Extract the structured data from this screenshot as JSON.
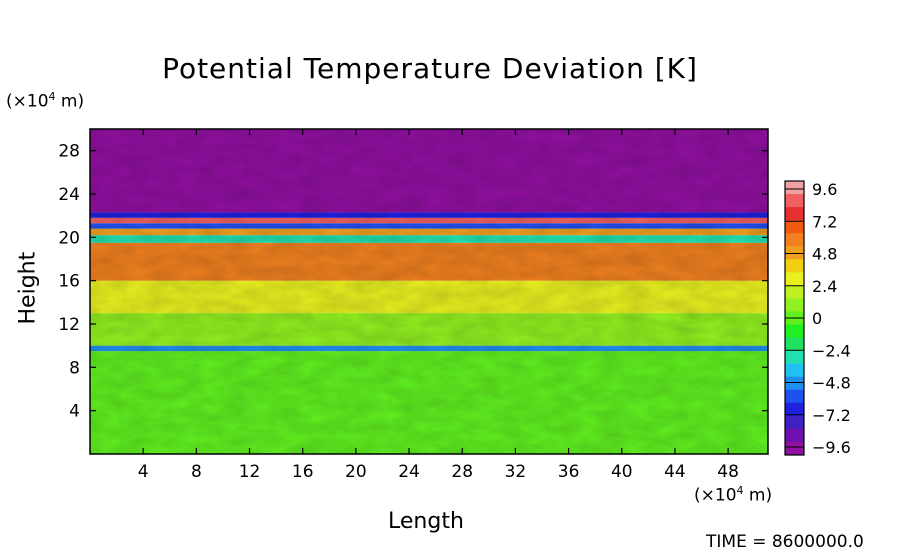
{
  "chart_data": {
    "type": "heatmap",
    "title": "Potential Temperature Deviation [K]",
    "xlabel": "Length",
    "ylabel": "Height",
    "x_unit_prefix": "(×10",
    "x_unit_exp": "4",
    "x_unit_suffix": " m)",
    "y_unit_prefix": "(×10",
    "y_unit_exp": "4",
    "y_unit_suffix": " m)",
    "xlim": [
      0,
      51
    ],
    "ylim": [
      0,
      30
    ],
    "x_ticks": [
      4,
      8,
      12,
      16,
      20,
      24,
      28,
      32,
      36,
      40,
      44,
      48
    ],
    "y_ticks": [
      4,
      8,
      12,
      16,
      20,
      24,
      28
    ],
    "colorbar": {
      "range": [
        -9.6,
        9.6
      ],
      "tick_labels": [
        "9.6",
        "7.2",
        "4.8",
        "2.4",
        "0",
        "−2.4",
        "−4.8",
        "−7.2",
        "−9.6"
      ],
      "tick_values": [
        9.6,
        7.2,
        4.8,
        2.4,
        0,
        -2.4,
        -4.8,
        -7.2,
        -9.6
      ],
      "colors": [
        "#f0a0a0",
        "#f06060",
        "#e83030",
        "#f05a10",
        "#f08020",
        "#f0a020",
        "#f0d010",
        "#e8f020",
        "#c0f020",
        "#90f020",
        "#60f020",
        "#20f020",
        "#20e060",
        "#20e0b0",
        "#20c0f0",
        "#2090f0",
        "#2050f0",
        "#2020e0",
        "#4020c0",
        "#7010b0",
        "#9010a0"
      ]
    },
    "field_layers": [
      {
        "from_height": 0,
        "to_height": 9.5,
        "value": 0.2
      },
      {
        "from_height": 9.5,
        "to_height": 10.0,
        "value": -5.0
      },
      {
        "from_height": 10.0,
        "to_height": 13.0,
        "value": 1.2
      },
      {
        "from_height": 13.0,
        "to_height": 16.0,
        "value": 3.0
      },
      {
        "from_height": 16.0,
        "to_height": 19.5,
        "value": 6.0
      },
      {
        "from_height": 19.5,
        "to_height": 20.2,
        "value": -2.5
      },
      {
        "from_height": 20.2,
        "to_height": 20.8,
        "value": 5.0
      },
      {
        "from_height": 20.8,
        "to_height": 21.3,
        "value": -6.0
      },
      {
        "from_height": 21.3,
        "to_height": 21.8,
        "value": 9.0
      },
      {
        "from_height": 21.8,
        "to_height": 22.3,
        "value": -7.0
      },
      {
        "from_height": 22.3,
        "to_height": 30,
        "value": -9.6
      }
    ]
  },
  "footer": {
    "time_label": "TIME = 8600000.0"
  }
}
